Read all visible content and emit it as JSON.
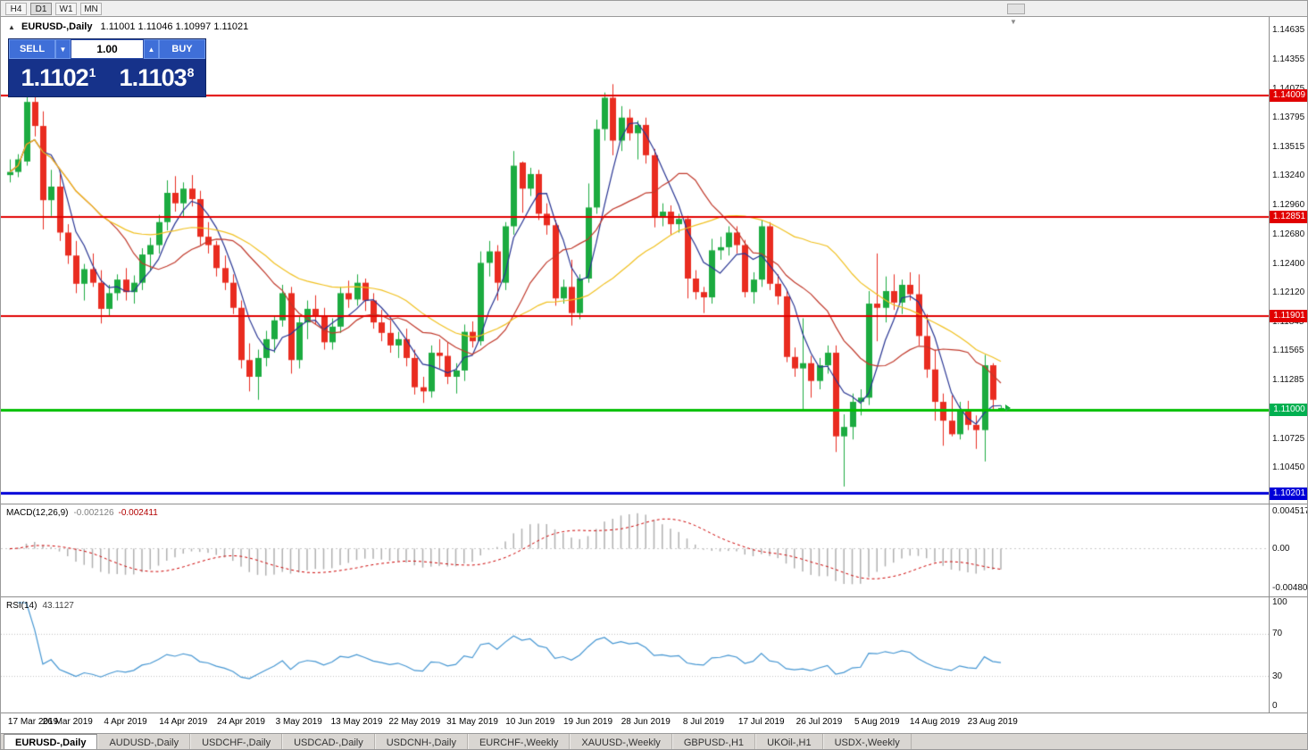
{
  "toolbar": {
    "timeframes": [
      {
        "label": "H4",
        "active": false
      },
      {
        "label": "D1",
        "active": true
      },
      {
        "label": "W1",
        "active": false
      },
      {
        "label": "MN",
        "active": false
      }
    ]
  },
  "chart_header": {
    "collapse_icon": "▲",
    "symbol_period": "EURUSD-,Daily",
    "ohlc_text": "1.11001 1.11046 1.10997 1.11021"
  },
  "trade_panel": {
    "sell_label": "SELL",
    "buy_label": "BUY",
    "volume": "1.00",
    "spin_down_icon": "▼",
    "spin_up_icon": "▲",
    "sell_price_main": "1.1102",
    "sell_price_sup": "1",
    "buy_price_main": "1.1103",
    "buy_price_sup": "8"
  },
  "shift_marker_icon": "▼",
  "price_axis": {
    "labels": [
      {
        "text": "1.14635",
        "price": 1.14635
      },
      {
        "text": "1.14355",
        "price": 1.14355
      },
      {
        "text": "1.14075",
        "price": 1.14075
      },
      {
        "text": "1.13795",
        "price": 1.13795
      },
      {
        "text": "1.13515",
        "price": 1.13515
      },
      {
        "text": "1.13240",
        "price": 1.1324
      },
      {
        "text": "1.12960",
        "price": 1.1296
      },
      {
        "text": "1.12680",
        "price": 1.1268
      },
      {
        "text": "1.12400",
        "price": 1.124
      },
      {
        "text": "1.12120",
        "price": 1.1212
      },
      {
        "text": "1.11845",
        "price": 1.11845
      },
      {
        "text": "1.11565",
        "price": 1.11565
      },
      {
        "text": "1.11285",
        "price": 1.11285
      },
      {
        "text": "1.10725",
        "price": 1.10725
      },
      {
        "text": "1.10450",
        "price": 1.1045
      }
    ],
    "badges": [
      {
        "text": "1.14009",
        "price": 1.14009,
        "color": "#e10000"
      },
      {
        "text": "1.12851",
        "price": 1.12851,
        "color": "#e10000"
      },
      {
        "text": "1.11901",
        "price": 1.11901,
        "color": "#e10000"
      },
      {
        "text": "1.11000",
        "price": 1.11,
        "color": "#00b050"
      },
      {
        "text": "1.10201",
        "price": 1.10201,
        "color": "#0000d8"
      }
    ]
  },
  "indicator_panels": {
    "macd": {
      "label": "MACD(12,26,9)",
      "value1": "-0.002126",
      "value2": "-0.002411",
      "axis_labels": [
        {
          "text": "0.004517",
          "value": 0.004517
        },
        {
          "text": "0.00",
          "value": 0
        },
        {
          "text": "-0.004806",
          "value": -0.004806
        }
      ]
    },
    "rsi": {
      "label": "RSI(14)",
      "value": "43.1127",
      "axis_labels": [
        {
          "text": "100",
          "value": 100
        },
        {
          "text": "70",
          "value": 70
        },
        {
          "text": "30",
          "value": 30
        },
        {
          "text": "0",
          "value": 0
        }
      ],
      "levels": [
        70,
        30
      ]
    }
  },
  "date_axis": [
    {
      "text": "17 Mar 2019",
      "index": 0
    },
    {
      "text": "26 Mar 2019",
      "index": 7
    },
    {
      "text": "4 Apr 2019",
      "index": 14
    },
    {
      "text": "14 Apr 2019",
      "index": 21
    },
    {
      "text": "24 Apr 2019",
      "index": 28
    },
    {
      "text": "3 May 2019",
      "index": 35
    },
    {
      "text": "13 May 2019",
      "index": 42
    },
    {
      "text": "22 May 2019",
      "index": 49
    },
    {
      "text": "31 May 2019",
      "index": 56
    },
    {
      "text": "10 Jun 2019",
      "index": 63
    },
    {
      "text": "19 Jun 2019",
      "index": 70
    },
    {
      "text": "28 Jun 2019",
      "index": 77
    },
    {
      "text": "8 Jul 2019",
      "index": 84
    },
    {
      "text": "17 Jul 2019",
      "index": 91
    },
    {
      "text": "26 Jul 2019",
      "index": 98
    },
    {
      "text": "5 Aug 2019",
      "index": 105
    },
    {
      "text": "14 Aug 2019",
      "index": 112
    },
    {
      "text": "23 Aug 2019",
      "index": 119
    }
  ],
  "tabs": [
    {
      "label": "EURUSD-,Daily",
      "active": true
    },
    {
      "label": "AUDUSD-,Daily",
      "active": false
    },
    {
      "label": "USDCHF-,Daily",
      "active": false
    },
    {
      "label": "USDCAD-,Daily",
      "active": false
    },
    {
      "label": "USDCNH-,Daily",
      "active": false
    },
    {
      "label": "EURCHF-,Weekly",
      "active": false
    },
    {
      "label": "XAUUSD-,Weekly",
      "active": false
    },
    {
      "label": "GBPUSD-,H1",
      "active": false
    },
    {
      "label": "UKOil-,H1",
      "active": false
    },
    {
      "label": "USDX-,Weekly",
      "active": false
    }
  ],
  "chart_data": {
    "type": "candlestick",
    "symbol": "EURUSD-",
    "timeframe": "Daily",
    "current": {
      "open": 1.11001,
      "high": 1.11046,
      "low": 1.10997,
      "close": 1.11021,
      "bid": "1.11021",
      "ask": "1.11038"
    },
    "bull_color": "#1cab40",
    "bear_color": "#e92c20",
    "horizontal_lines": [
      {
        "price": 1.14009,
        "color": "#e10000",
        "width": 2
      },
      {
        "price": 1.12851,
        "color": "#e10000",
        "width": 2
      },
      {
        "price": 1.11901,
        "color": "#e10000",
        "width": 2
      },
      {
        "price": 1.11,
        "color": "#00bf00",
        "width": 3
      },
      {
        "price": 1.10201,
        "color": "#0000d8",
        "width": 3
      }
    ],
    "moving_averages": [
      {
        "period": 5,
        "color": "#283593"
      },
      {
        "period": 13,
        "color": "#c0392b"
      },
      {
        "period": 30,
        "color": "#f0c020"
      }
    ],
    "macd": {
      "fast": 12,
      "slow": 26,
      "signal_period": 9,
      "hist_color": "#b0b0b0",
      "signal_color": "#cc0000"
    },
    "rsi": {
      "period": 14,
      "color": "#4596d2"
    },
    "ohlc": [
      [
        1.1325,
        1.134,
        1.1318,
        1.1328
      ],
      [
        1.1328,
        1.1345,
        1.1323,
        1.134
      ],
      [
        1.1338,
        1.1403,
        1.1334,
        1.1395
      ],
      [
        1.1395,
        1.1409,
        1.1362,
        1.1372
      ],
      [
        1.1372,
        1.1386,
        1.1273,
        1.1301
      ],
      [
        1.1301,
        1.133,
        1.1286,
        1.1314
      ],
      [
        1.1314,
        1.1326,
        1.1262,
        1.127
      ],
      [
        1.127,
        1.1278,
        1.124,
        1.1248
      ],
      [
        1.1248,
        1.1262,
        1.1212,
        1.1221
      ],
      [
        1.1221,
        1.124,
        1.1205,
        1.1235
      ],
      [
        1.1235,
        1.125,
        1.1218,
        1.1222
      ],
      [
        1.1222,
        1.1234,
        1.1183,
        1.1197
      ],
      [
        1.1197,
        1.122,
        1.119,
        1.1212
      ],
      [
        1.1212,
        1.123,
        1.1205,
        1.1225
      ],
      [
        1.1225,
        1.1236,
        1.1205,
        1.1213
      ],
      [
        1.1213,
        1.1229,
        1.1202,
        1.1222
      ],
      [
        1.1222,
        1.1255,
        1.1215,
        1.1249
      ],
      [
        1.1249,
        1.1265,
        1.1233,
        1.1258
      ],
      [
        1.1258,
        1.1287,
        1.125,
        1.128
      ],
      [
        1.128,
        1.132,
        1.1272,
        1.1308
      ],
      [
        1.1308,
        1.1324,
        1.129,
        1.1298
      ],
      [
        1.1298,
        1.1318,
        1.1285,
        1.1312
      ],
      [
        1.1312,
        1.1325,
        1.1295,
        1.1302
      ],
      [
        1.1302,
        1.131,
        1.1258,
        1.1266
      ],
      [
        1.1266,
        1.128,
        1.125,
        1.1258
      ],
      [
        1.1258,
        1.1262,
        1.1228,
        1.1236
      ],
      [
        1.1236,
        1.1248,
        1.1215,
        1.1222
      ],
      [
        1.1222,
        1.123,
        1.1192,
        1.1198
      ],
      [
        1.1198,
        1.1205,
        1.114,
        1.1148
      ],
      [
        1.1148,
        1.1164,
        1.1118,
        1.1132
      ],
      [
        1.1132,
        1.1158,
        1.111,
        1.115
      ],
      [
        1.115,
        1.1176,
        1.1142,
        1.1168
      ],
      [
        1.1168,
        1.119,
        1.1155,
        1.1186
      ],
      [
        1.1186,
        1.122,
        1.118,
        1.1212
      ],
      [
        1.1212,
        1.1218,
        1.1135,
        1.1148
      ],
      [
        1.1148,
        1.119,
        1.114,
        1.1184
      ],
      [
        1.1184,
        1.1205,
        1.1168,
        1.1197
      ],
      [
        1.1197,
        1.121,
        1.1182,
        1.119
      ],
      [
        1.119,
        1.1198,
        1.1158,
        1.1165
      ],
      [
        1.1165,
        1.1188,
        1.1158,
        1.118
      ],
      [
        1.118,
        1.1218,
        1.1174,
        1.1212
      ],
      [
        1.1212,
        1.1224,
        1.1198,
        1.1206
      ],
      [
        1.1206,
        1.123,
        1.12,
        1.1222
      ],
      [
        1.1222,
        1.1226,
        1.1195,
        1.1205
      ],
      [
        1.1205,
        1.1212,
        1.1178,
        1.1184
      ],
      [
        1.1184,
        1.1196,
        1.1166,
        1.1174
      ],
      [
        1.1174,
        1.1186,
        1.1155,
        1.1162
      ],
      [
        1.1162,
        1.1175,
        1.115,
        1.1168
      ],
      [
        1.1168,
        1.1178,
        1.1142,
        1.115
      ],
      [
        1.115,
        1.1158,
        1.1115,
        1.1122
      ],
      [
        1.1122,
        1.1132,
        1.1107,
        1.1118
      ],
      [
        1.1118,
        1.1162,
        1.1112,
        1.1155
      ],
      [
        1.1155,
        1.1168,
        1.114,
        1.1152
      ],
      [
        1.1152,
        1.1165,
        1.1125,
        1.1132
      ],
      [
        1.1132,
        1.1145,
        1.1116,
        1.1138
      ],
      [
        1.1138,
        1.1182,
        1.1128,
        1.1175
      ],
      [
        1.1175,
        1.1185,
        1.116,
        1.1166
      ],
      [
        1.1166,
        1.1252,
        1.1162,
        1.1241
      ],
      [
        1.1241,
        1.1262,
        1.1228,
        1.1252
      ],
      [
        1.1252,
        1.1258,
        1.1205,
        1.1222
      ],
      [
        1.1222,
        1.128,
        1.1215,
        1.1276
      ],
      [
        1.1276,
        1.1348,
        1.1268,
        1.1334
      ],
      [
        1.1337,
        1.1338,
        1.1289,
        1.1312
      ],
      [
        1.1312,
        1.1332,
        1.1305,
        1.1326
      ],
      [
        1.1326,
        1.133,
        1.1282,
        1.1288
      ],
      [
        1.1288,
        1.1298,
        1.1268,
        1.1277
      ],
      [
        1.1277,
        1.1282,
        1.12,
        1.1207
      ],
      [
        1.1207,
        1.1225,
        1.1202,
        1.1218
      ],
      [
        1.1218,
        1.1244,
        1.1181,
        1.1193
      ],
      [
        1.1193,
        1.123,
        1.1187,
        1.1226
      ],
      [
        1.1226,
        1.1317,
        1.1222,
        1.1294
      ],
      [
        1.1294,
        1.1378,
        1.1288,
        1.1369
      ],
      [
        1.1369,
        1.1404,
        1.1358,
        1.1399
      ],
      [
        1.1399,
        1.1412,
        1.1344,
        1.1358
      ],
      [
        1.1358,
        1.1391,
        1.1348,
        1.138
      ],
      [
        1.138,
        1.1388,
        1.1358,
        1.1365
      ],
      [
        1.1365,
        1.1377,
        1.134,
        1.1373
      ],
      [
        1.1373,
        1.138,
        1.1336,
        1.1344
      ],
      [
        1.1344,
        1.135,
        1.1275,
        1.1285
      ],
      [
        1.1285,
        1.1298,
        1.1276,
        1.129
      ],
      [
        1.129,
        1.1296,
        1.1268,
        1.1278
      ],
      [
        1.1278,
        1.1288,
        1.127,
        1.1283
      ],
      [
        1.1283,
        1.1286,
        1.1207,
        1.1226
      ],
      [
        1.1226,
        1.1234,
        1.1206,
        1.1213
      ],
      [
        1.1213,
        1.1218,
        1.1193,
        1.1208
      ],
      [
        1.1208,
        1.1264,
        1.1202,
        1.1253
      ],
      [
        1.1253,
        1.1266,
        1.1244,
        1.1256
      ],
      [
        1.1256,
        1.1276,
        1.1248,
        1.127
      ],
      [
        1.127,
        1.1276,
        1.125,
        1.1258
      ],
      [
        1.1258,
        1.1263,
        1.1208,
        1.1213
      ],
      [
        1.1213,
        1.1232,
        1.1202,
        1.1225
      ],
      [
        1.1225,
        1.1282,
        1.1218,
        1.1276
      ],
      [
        1.1276,
        1.128,
        1.1215,
        1.1221
      ],
      [
        1.1221,
        1.123,
        1.1201,
        1.1209
      ],
      [
        1.1209,
        1.1215,
        1.1146,
        1.1151
      ],
      [
        1.1151,
        1.116,
        1.1132,
        1.114
      ],
      [
        1.114,
        1.1188,
        1.1101,
        1.1145
      ],
      [
        1.1145,
        1.1152,
        1.1112,
        1.1128
      ],
      [
        1.1128,
        1.115,
        1.112,
        1.1143
      ],
      [
        1.1143,
        1.1162,
        1.1135,
        1.1155
      ],
      [
        1.1155,
        1.1162,
        1.106,
        1.1075
      ],
      [
        1.1075,
        1.1096,
        1.1027,
        1.1084
      ],
      [
        1.1084,
        1.1116,
        1.1072,
        1.1108
      ],
      [
        1.1108,
        1.112,
        1.1095,
        1.1112
      ],
      [
        1.1112,
        1.1214,
        1.1105,
        1.1202
      ],
      [
        1.1202,
        1.125,
        1.1166,
        1.1198
      ],
      [
        1.1198,
        1.1228,
        1.1184,
        1.1214
      ],
      [
        1.1214,
        1.123,
        1.1196,
        1.1203
      ],
      [
        1.1203,
        1.1225,
        1.1192,
        1.122
      ],
      [
        1.122,
        1.1232,
        1.1205,
        1.1211
      ],
      [
        1.1211,
        1.123,
        1.1162,
        1.1171
      ],
      [
        1.1171,
        1.1192,
        1.1131,
        1.1139
      ],
      [
        1.1139,
        1.1158,
        1.109,
        1.1108
      ],
      [
        1.1108,
        1.1116,
        1.1066,
        1.109
      ],
      [
        1.109,
        1.1114,
        1.1075,
        1.1077
      ],
      [
        1.1077,
        1.1108,
        1.1072,
        1.11
      ],
      [
        1.11,
        1.1109,
        1.1081,
        1.1086
      ],
      [
        1.1086,
        1.1095,
        1.1063,
        1.1081
      ],
      [
        1.1081,
        1.1153,
        1.1051,
        1.1143
      ],
      [
        1.1143,
        1.1145,
        1.11,
        1.111
      ],
      [
        1.11001,
        1.11046,
        1.10997,
        1.11021
      ]
    ]
  }
}
